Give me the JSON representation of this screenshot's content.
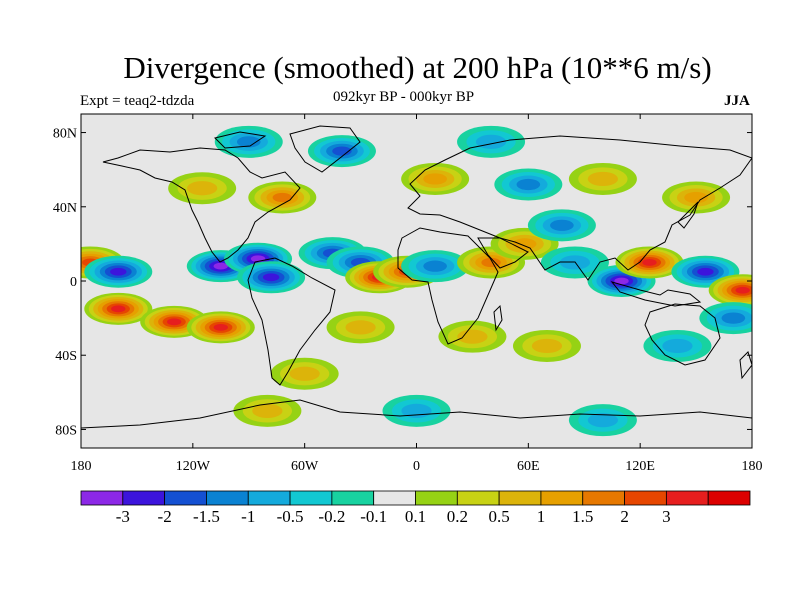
{
  "title": "Divergence (smoothed) at 200 hPa (10**6 m/s)",
  "experiment": "Expt = teaq2-tdzda",
  "period": "092kyr BP - 000kyr BP",
  "season": "JJA",
  "map": {
    "lat_ticks": [
      "80N",
      "40N",
      "0",
      "40S",
      "80S"
    ],
    "lat_values": [
      80,
      40,
      0,
      -40,
      -80
    ],
    "lon_ticks": [
      "180",
      "120W",
      "60W",
      "0",
      "60E",
      "120E",
      "180"
    ],
    "lon_values": [
      -180,
      -120,
      -60,
      0,
      60,
      120,
      180
    ],
    "lat_range": [
      -90,
      90
    ],
    "lon_range": [
      -180,
      180
    ],
    "background_color": "#e6e6e6",
    "coastline_color": "#000000"
  },
  "colorbar": {
    "colors": [
      "#8c28e6",
      "#3c14dc",
      "#1450d2",
      "#0a82d2",
      "#14aadc",
      "#12c8d2",
      "#18d2a0",
      "#e6e6e6",
      "#96d214",
      "#c8d214",
      "#dcb40a",
      "#e6a000",
      "#e67800",
      "#e64600",
      "#e61e1e",
      "#dc0000"
    ],
    "labels": [
      "-3",
      "-2",
      "-1.5",
      "-1",
      "-0.5",
      "-0.2",
      "-0.1",
      "0.1",
      "0.2",
      "0.5",
      "1",
      "1.5",
      "2",
      "3"
    ]
  },
  "anomalies": [
    {
      "lon": -160,
      "lat": -15,
      "value": 3
    },
    {
      "lon": -130,
      "lat": -22,
      "value": 3
    },
    {
      "lon": -105,
      "lat": -25,
      "value": 3
    },
    {
      "lon": -175,
      "lat": 10,
      "value": 2
    },
    {
      "lon": -160,
      "lat": 5,
      "value": -2
    },
    {
      "lon": -105,
      "lat": 8,
      "value": -3
    },
    {
      "lon": -85,
      "lat": 12,
      "value": -3
    },
    {
      "lon": -78,
      "lat": 2,
      "value": -2
    },
    {
      "lon": -72,
      "lat": 45,
      "value": 1.5
    },
    {
      "lon": -115,
      "lat": 50,
      "value": 0.5
    },
    {
      "lon": -45,
      "lat": 15,
      "value": -1.5
    },
    {
      "lon": -30,
      "lat": 10,
      "value": -1.5
    },
    {
      "lon": -20,
      "lat": 2,
      "value": 3
    },
    {
      "lon": -5,
      "lat": 5,
      "value": 2
    },
    {
      "lon": 10,
      "lat": 8,
      "value": -1
    },
    {
      "lon": 40,
      "lat": 10,
      "value": 1.5
    },
    {
      "lon": 58,
      "lat": 20,
      "value": 1
    },
    {
      "lon": 78,
      "lat": 30,
      "value": -1
    },
    {
      "lon": 85,
      "lat": 10,
      "value": -0.5
    },
    {
      "lon": 110,
      "lat": 0,
      "value": -3
    },
    {
      "lon": 125,
      "lat": 10,
      "value": 3
    },
    {
      "lon": 155,
      "lat": 5,
      "value": -2
    },
    {
      "lon": 175,
      "lat": -5,
      "value": 3
    },
    {
      "lon": 170,
      "lat": -20,
      "value": -1
    },
    {
      "lon": 60,
      "lat": 52,
      "value": -1
    },
    {
      "lon": 10,
      "lat": 55,
      "value": 1
    },
    {
      "lon": 100,
      "lat": 55,
      "value": 0.5
    },
    {
      "lon": -40,
      "lat": 70,
      "value": -1.5
    },
    {
      "lon": -90,
      "lat": 75,
      "value": -1
    },
    {
      "lon": 150,
      "lat": 45,
      "value": 1
    },
    {
      "lon": 30,
      "lat": -30,
      "value": 0.5
    },
    {
      "lon": -30,
      "lat": -25,
      "value": 0.5
    },
    {
      "lon": 70,
      "lat": -35,
      "value": 0.5
    },
    {
      "lon": 140,
      "lat": -35,
      "value": -0.5
    },
    {
      "lon": -60,
      "lat": -50,
      "value": 0.5
    },
    {
      "lon": 0,
      "lat": -70,
      "value": -0.5
    },
    {
      "lon": -80,
      "lat": -70,
      "value": 0.5
    },
    {
      "lon": 100,
      "lat": -75,
      "value": -0.5
    },
    {
      "lon": 40,
      "lat": 75,
      "value": -0.5
    }
  ]
}
